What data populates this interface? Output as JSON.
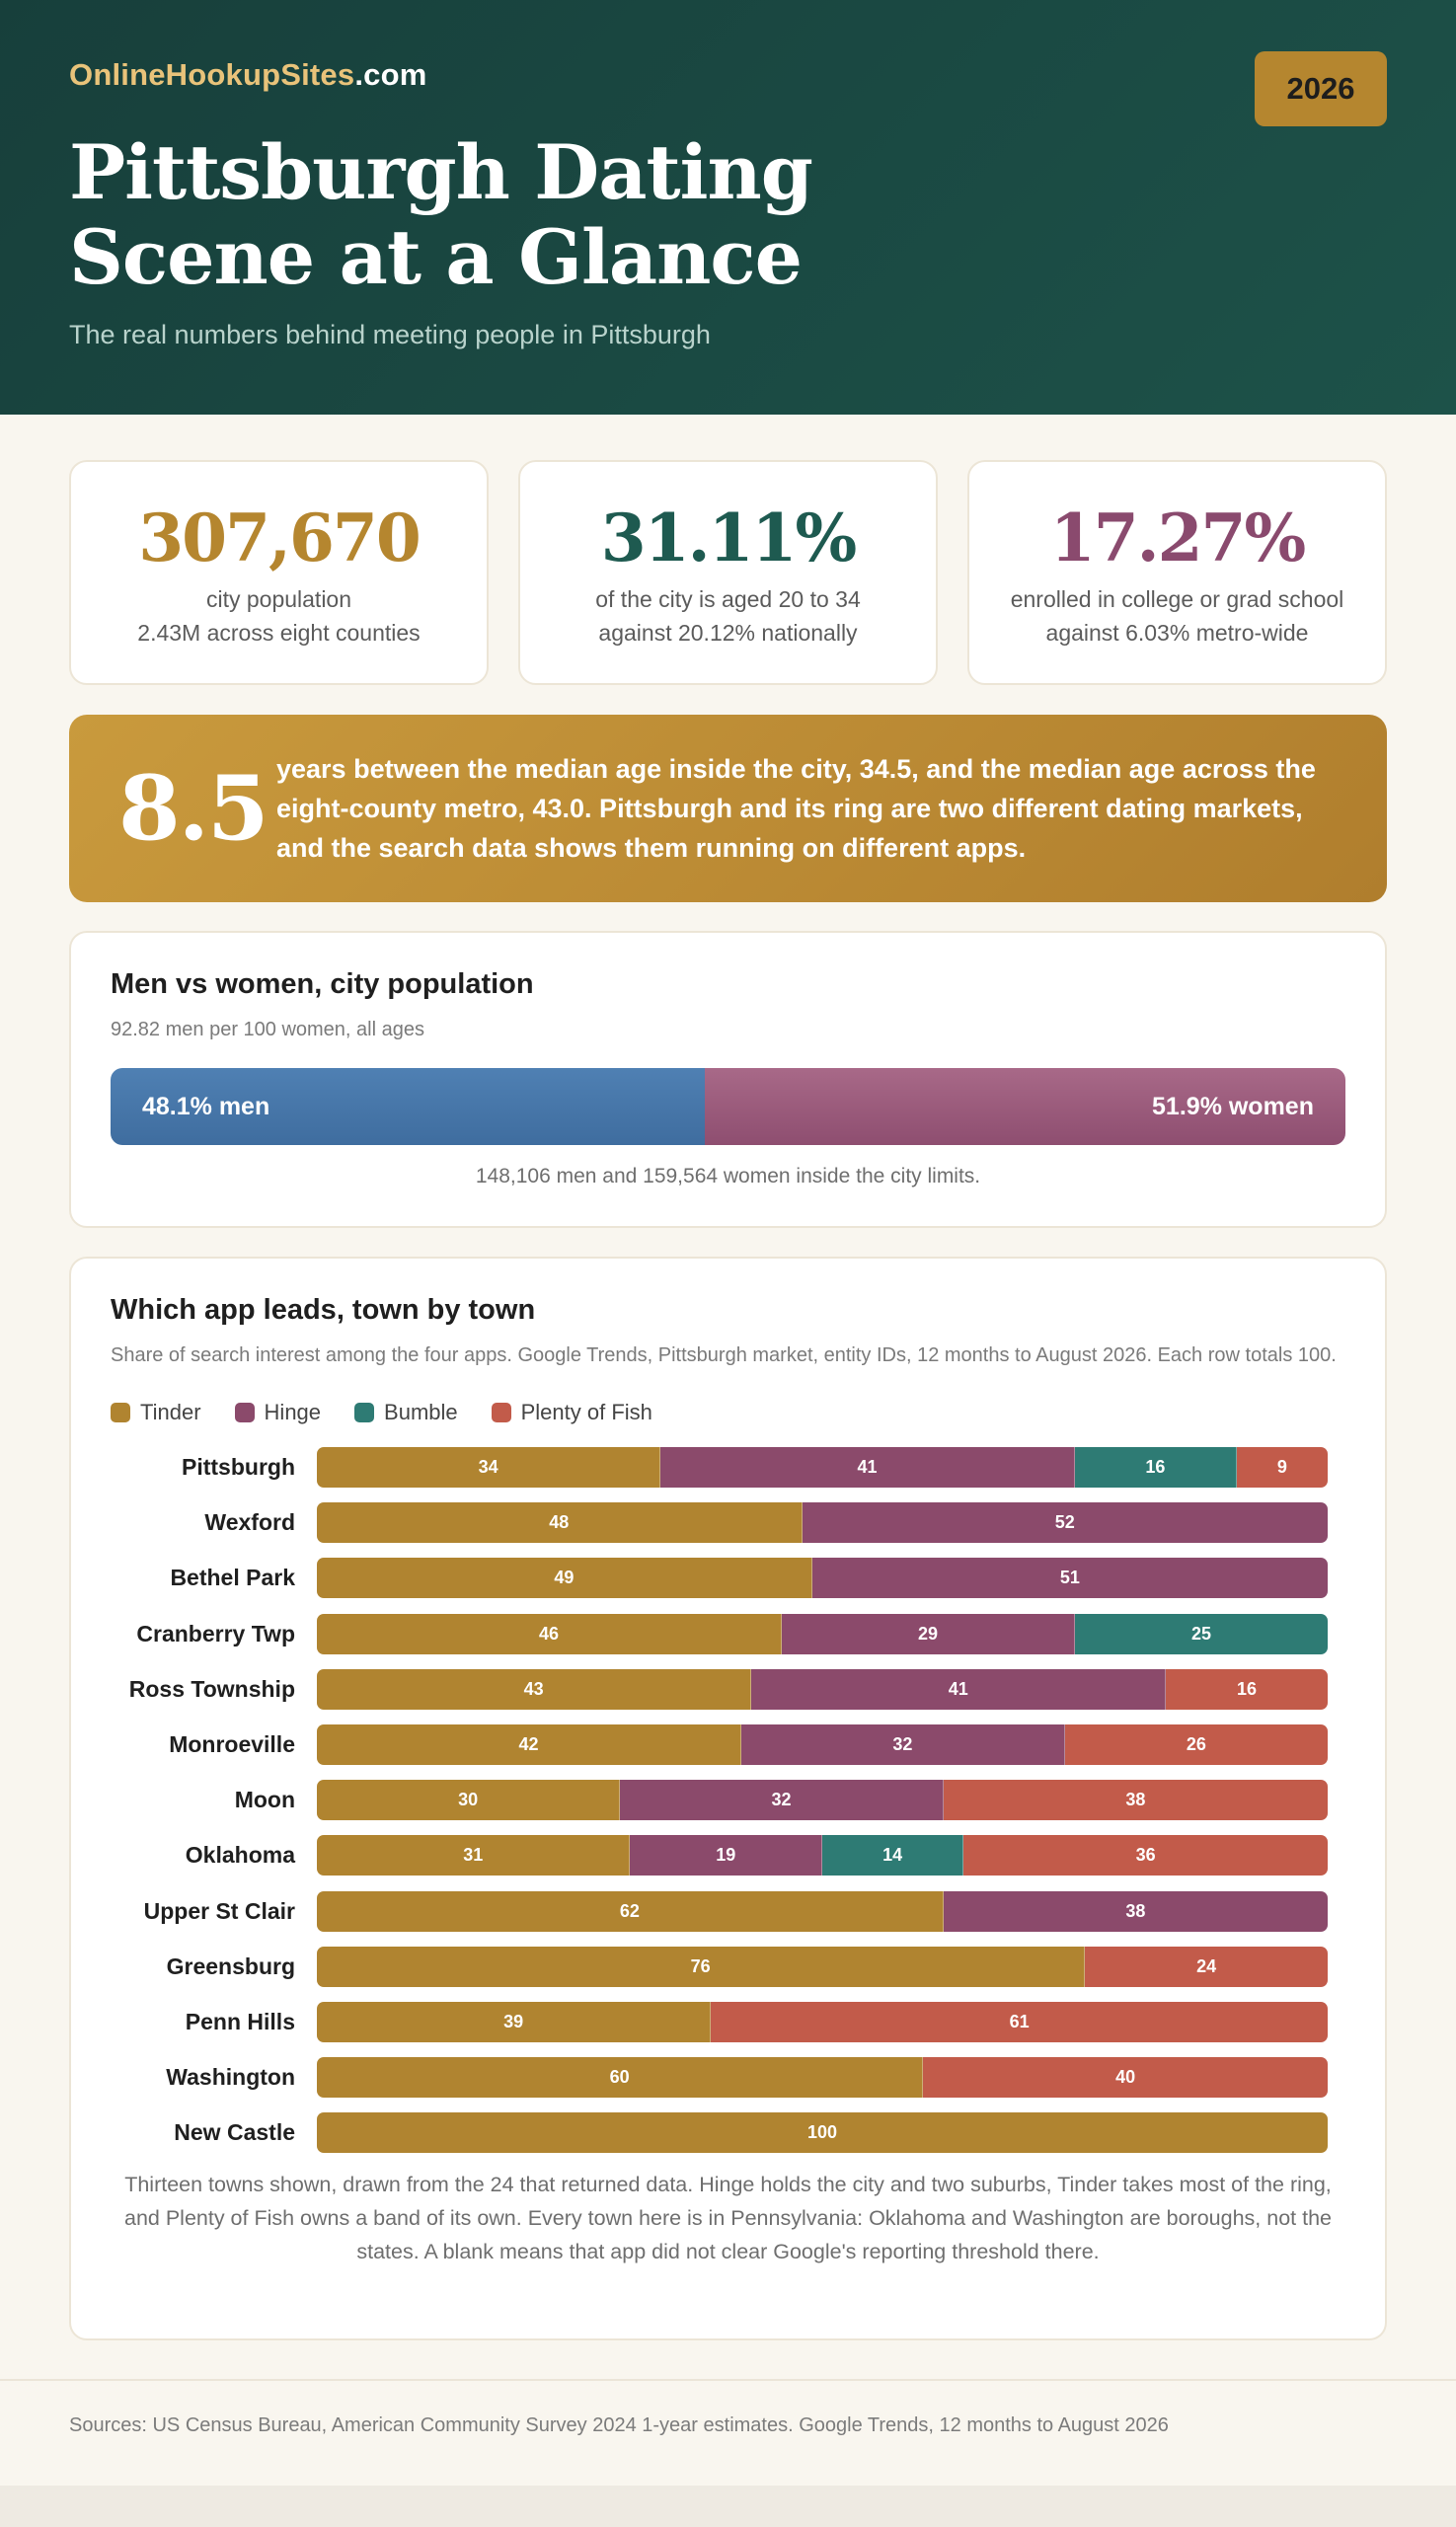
{
  "header": {
    "brand_main": "OnlineHookupSites",
    "brand_tld": ".com",
    "year": "2026",
    "title": "Pittsburgh Dating Scene at a Glance",
    "subtitle": "The real numbers behind meeting people in Pittsburgh"
  },
  "stats": [
    {
      "value": "307,670",
      "line1": "city population",
      "line2": "2.43M across eight counties",
      "color": "#b5862f"
    },
    {
      "value": "31.11%",
      "line1": "of the city is aged 20 to 34",
      "line2": "against 20.12% nationally",
      "color": "#1e5a50"
    },
    {
      "value": "17.27%",
      "line1": "enrolled in college or grad school",
      "line2": "against 6.03% metro-wide",
      "color": "#8a4a6e"
    }
  ],
  "callout": {
    "number": "8.5",
    "text": "years between the median age inside the city, 34.5, and the median age across the eight-county metro, 43.0. Pittsburgh and its ring are two different dating markets, and the search data shows them running on different apps."
  },
  "gender": {
    "title": "Men vs women, city population",
    "subtitle": "92.82 men per 100 women, all ages",
    "men_label": "48.1% men",
    "women_label": "51.9% women",
    "men_share": 48.1,
    "women_share": 51.9,
    "note": "148,106 men and 159,564 women inside the city limits."
  },
  "apps": {
    "title": "Which app leads, town by town",
    "subtitle": "Share of search interest among the four apps. Google Trends, Pittsburgh market, entity IDs, 12 months to August 2026. Each row totals 100.",
    "note": "Thirteen towns shown, drawn from the 24 that returned data. Hinge holds the city and two suburbs, Tinder takes most of the ring, and Plenty of Fish owns a band of its own. Every town here is in Pennsylvania: Oklahoma and Washington are boroughs, not the states. A blank means that app did not clear Google's reporting threshold there."
  },
  "chart_data": {
    "type": "bar",
    "orientation": "horizontal",
    "stacked": true,
    "title": "Which app leads, town by town",
    "categories": [
      "Pittsburgh",
      "Wexford",
      "Bethel Park",
      "Cranberry Twp",
      "Ross Township",
      "Monroeville",
      "Moon",
      "Oklahoma",
      "Upper St Clair",
      "Greensburg",
      "Penn Hills",
      "Washington",
      "New Castle"
    ],
    "series": [
      {
        "name": "Tinder",
        "color": "#b08430",
        "values": [
          34,
          48,
          49,
          46,
          43,
          42,
          30,
          31,
          62,
          76,
          39,
          60,
          100
        ]
      },
      {
        "name": "Hinge",
        "color": "#8b4a6b",
        "values": [
          41,
          52,
          51,
          29,
          41,
          32,
          32,
          19,
          38,
          null,
          null,
          null,
          null
        ]
      },
      {
        "name": "Bumble",
        "color": "#2e7b74",
        "values": [
          16,
          null,
          null,
          25,
          null,
          null,
          null,
          14,
          null,
          null,
          null,
          null,
          null
        ]
      },
      {
        "name": "Plenty of Fish",
        "color": "#c25b4a",
        "values": [
          9,
          null,
          null,
          null,
          16,
          26,
          38,
          36,
          null,
          24,
          61,
          40,
          null
        ]
      }
    ],
    "xlim": [
      0,
      100
    ],
    "legend": "top-left"
  },
  "footer": {
    "sources": "Sources: US Census Bureau, American Community Survey 2024 1-year estimates. Google Trends, 12 months to August 2026"
  }
}
